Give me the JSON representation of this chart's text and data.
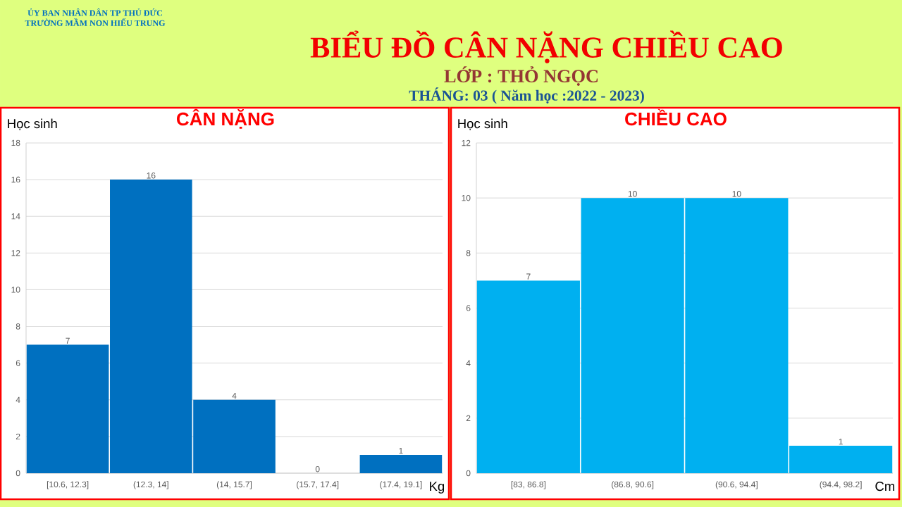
{
  "chart_data": [
    {
      "type": "other",
      "title": "BIỂU ĐỒ CÂN NẶNG CHIỀU CAO",
      "subtitle": "LỚP : THỎ NGỌC",
      "annotations": [
        "ỦY BAN NHÂN DÂN TP THỦ ĐỨC",
        "TRƯỜNG MẦM NON HIẾU TRUNG",
        "THÁNG: 03 ( Năm học :2022 - 2023)"
      ]
    },
    {
      "type": "bar",
      "title": "CÂN NẶNG",
      "ylabel": "Học sinh",
      "xlabel": "Kg",
      "categories": [
        "[10.6, 12.3]",
        "(12.3, 14]",
        "(14, 15.7]",
        "(15.7, 17.4]",
        "(17.4, 19.1]"
      ],
      "values": [
        7,
        16,
        4,
        0,
        1
      ],
      "color": "#0070c0",
      "ylim": [
        0,
        18
      ],
      "yticks": [
        0,
        2,
        4,
        6,
        8,
        10,
        12,
        14,
        16,
        18
      ],
      "grid": "y",
      "data_labels": true
    },
    {
      "type": "bar",
      "title": "CHIỀU CAO",
      "ylabel": "Học sinh",
      "xlabel": "Cm",
      "categories": [
        "[83, 86.8]",
        "(86.8, 90.6]",
        "(90.6, 94.4]",
        "(94.4, 98.2]"
      ],
      "values": [
        7,
        10,
        10,
        1
      ],
      "color": "#00b0f0",
      "ylim": [
        0,
        12
      ],
      "yticks": [
        0,
        2,
        4,
        6,
        8,
        10,
        12
      ],
      "grid": "y",
      "data_labels": true
    }
  ]
}
